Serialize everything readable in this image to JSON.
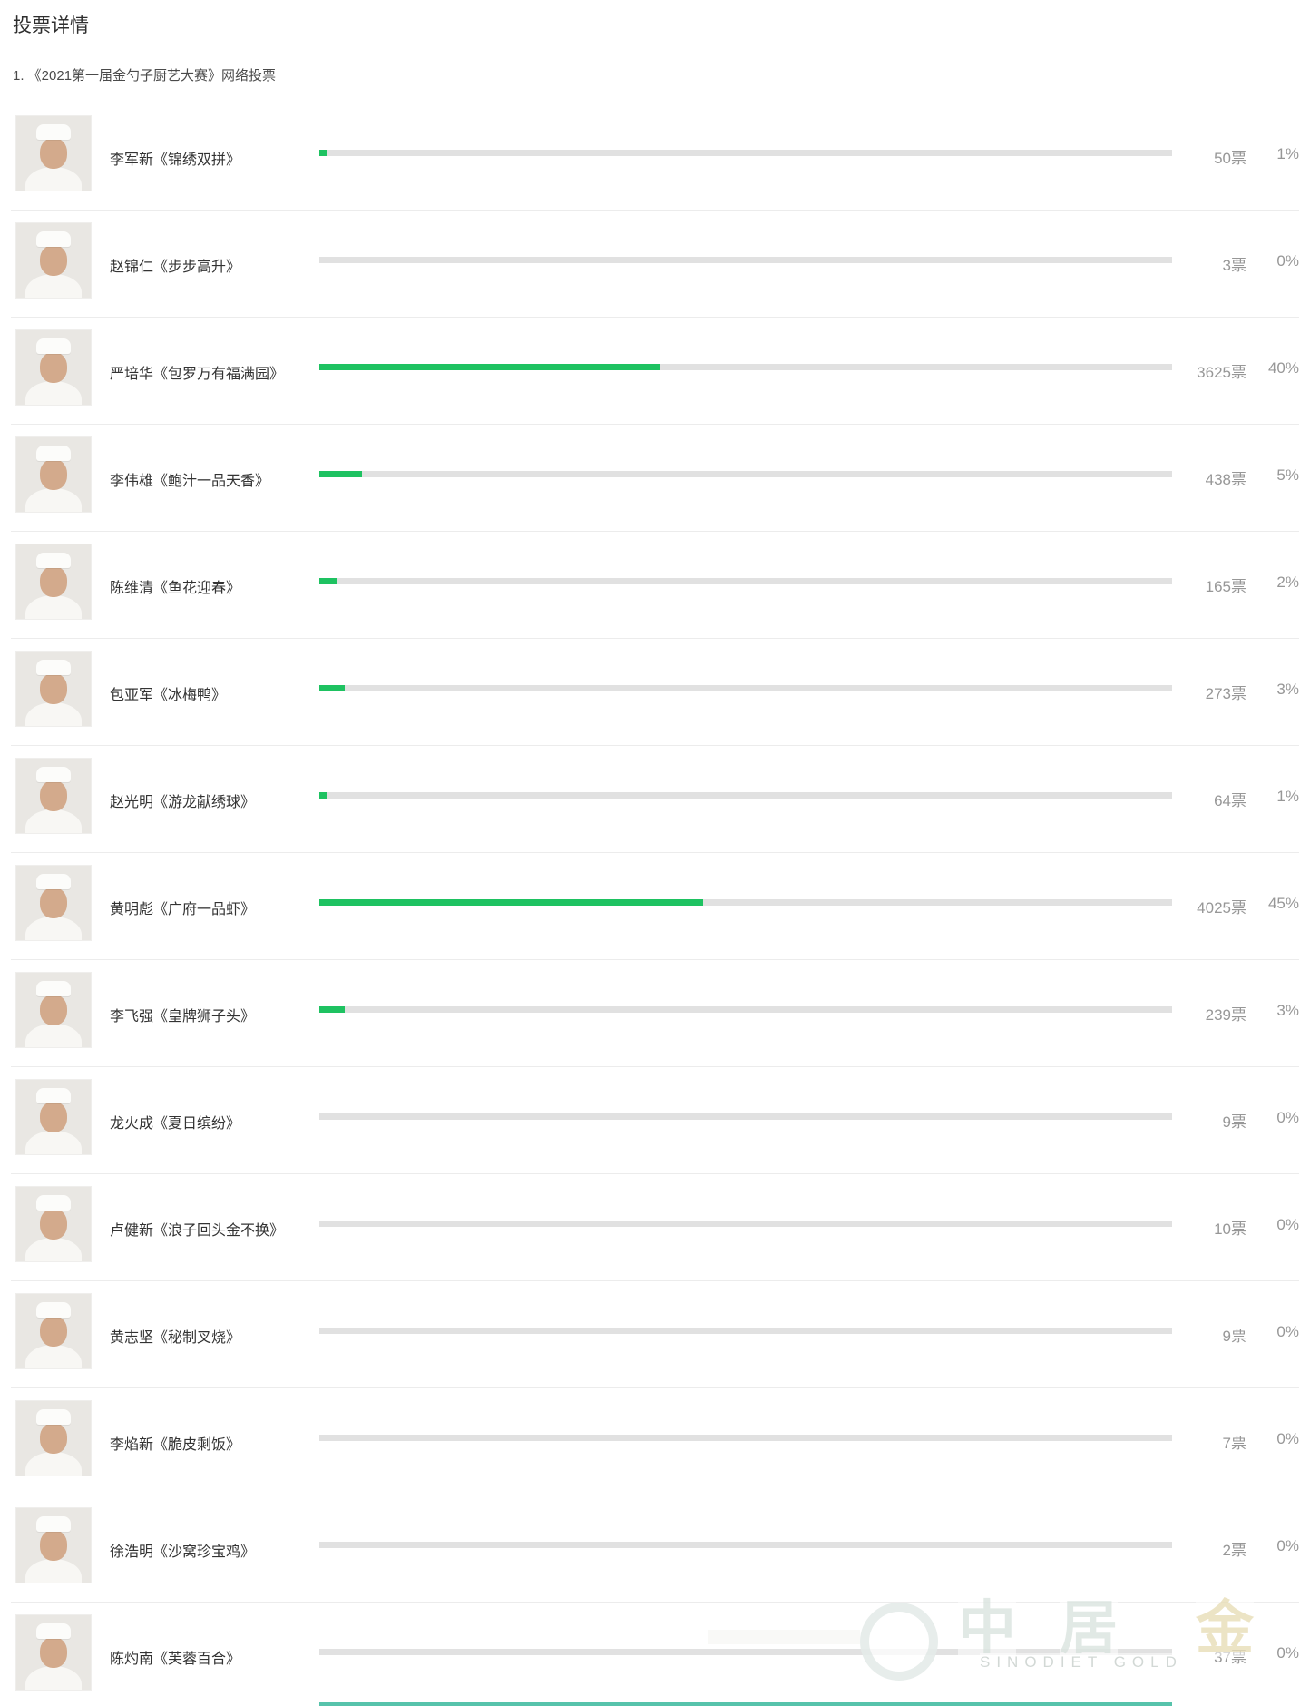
{
  "page": {
    "title": "投票详情",
    "subtitle": "1. 《2021第一届金勺子厨艺大赛》网络投票"
  },
  "colors": {
    "bar_fill_green": "#1ec261",
    "bar_track_gray": "#e1e1e1",
    "number_text_gray": "#979797",
    "divider_gray": "#ececec",
    "bottom_strip_teal": "#57c3ab"
  },
  "candidates": [
    {
      "name": "李军新《锦绣双拼》",
      "votes": "50票",
      "votes_num": 50,
      "percent": "1%",
      "percent_num": 1
    },
    {
      "name": "赵锦仁《步步高升》",
      "votes": "3票",
      "votes_num": 3,
      "percent": "0%",
      "percent_num": 0
    },
    {
      "name": "严培华《包罗万有福满园》",
      "votes": "3625票",
      "votes_num": 3625,
      "percent": "40%",
      "percent_num": 40
    },
    {
      "name": "李伟雄《鲍汁一品天香》",
      "votes": "438票",
      "votes_num": 438,
      "percent": "5%",
      "percent_num": 5
    },
    {
      "name": "陈维清《鱼花迎春》",
      "votes": "165票",
      "votes_num": 165,
      "percent": "2%",
      "percent_num": 2
    },
    {
      "name": "包亚军《冰梅鸭》",
      "votes": "273票",
      "votes_num": 273,
      "percent": "3%",
      "percent_num": 3
    },
    {
      "name": "赵光明《游龙献绣球》",
      "votes": "64票",
      "votes_num": 64,
      "percent": "1%",
      "percent_num": 1
    },
    {
      "name": "黄明彪《广府一品虾》",
      "votes": "4025票",
      "votes_num": 4025,
      "percent": "45%",
      "percent_num": 45
    },
    {
      "name": "李飞强《皇牌狮子头》",
      "votes": "239票",
      "votes_num": 239,
      "percent": "3%",
      "percent_num": 3
    },
    {
      "name": "龙火成《夏日缤纷》",
      "votes": "9票",
      "votes_num": 9,
      "percent": "0%",
      "percent_num": 0
    },
    {
      "name": "卢健新《浪子回头金不换》",
      "votes": "10票",
      "votes_num": 10,
      "percent": "0%",
      "percent_num": 0
    },
    {
      "name": "黄志坚《秘制叉烧》",
      "votes": "9票",
      "votes_num": 9,
      "percent": "0%",
      "percent_num": 0
    },
    {
      "name": "李焰新《脆皮剩饭》",
      "votes": "7票",
      "votes_num": 7,
      "percent": "0%",
      "percent_num": 0
    },
    {
      "name": "徐浩明《沙窝珍宝鸡》",
      "votes": "2票",
      "votes_num": 2,
      "percent": "0%",
      "percent_num": 0
    },
    {
      "name": "陈灼南《芙蓉百合》",
      "votes": "37票",
      "votes_num": 37,
      "percent": "0%",
      "percent_num": 0
    }
  ],
  "watermark": {
    "char1": "中",
    "char2": "居",
    "char3": "金",
    "text_en": "SINODIET GOLD"
  }
}
